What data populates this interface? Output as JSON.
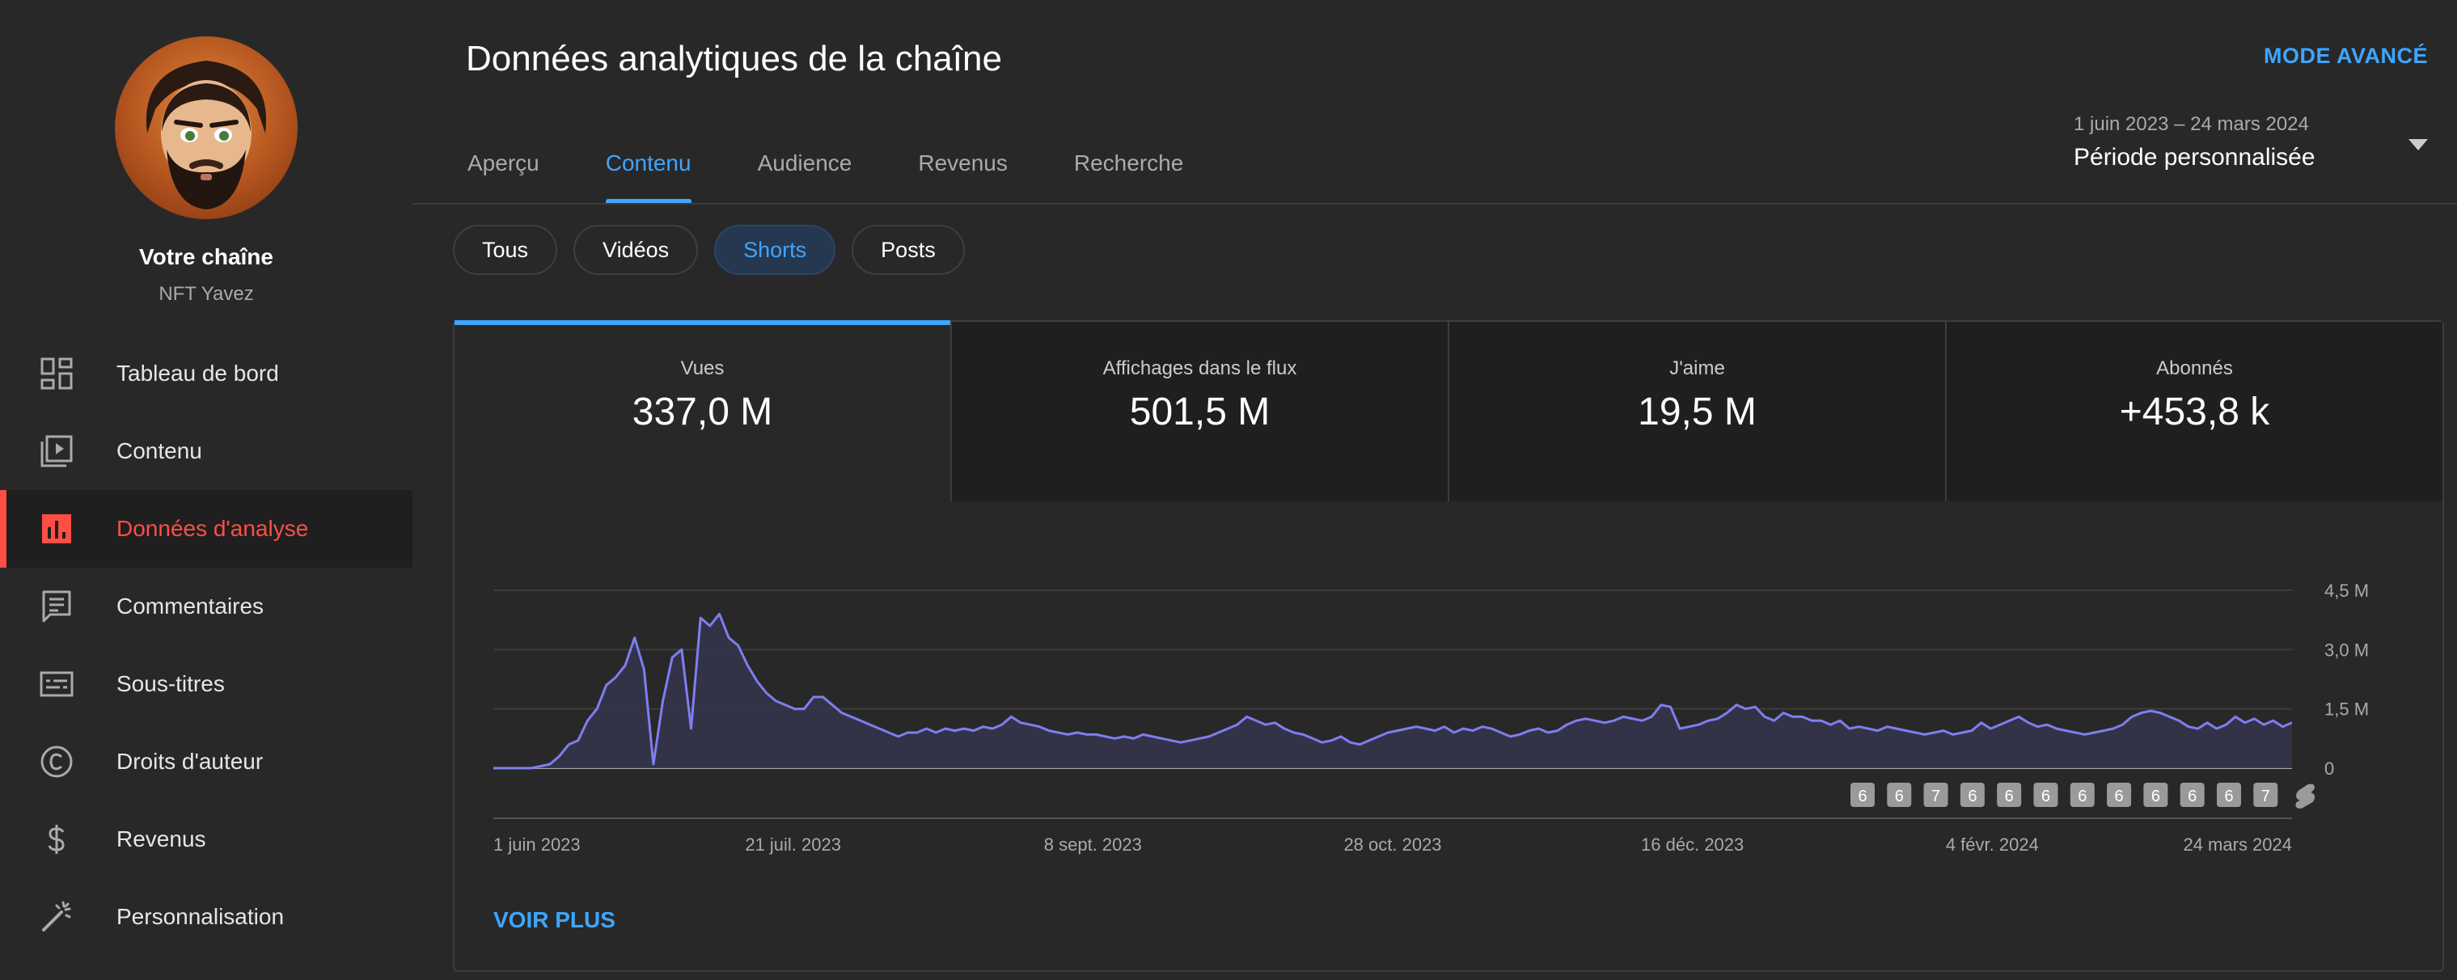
{
  "sidebar": {
    "channel_title": "Votre chaîne",
    "channel_name": "NFT Yavez",
    "items": [
      {
        "label": "Tableau de bord",
        "icon": "dashboard-icon"
      },
      {
        "label": "Contenu",
        "icon": "content-icon"
      },
      {
        "label": "Données d'analyse",
        "icon": "analytics-icon",
        "active": true
      },
      {
        "label": "Commentaires",
        "icon": "comments-icon"
      },
      {
        "label": "Sous-titres",
        "icon": "subtitles-icon"
      },
      {
        "label": "Droits d'auteur",
        "icon": "copyright-icon"
      },
      {
        "label": "Revenus",
        "icon": "dollar-icon"
      },
      {
        "label": "Personnalisation",
        "icon": "magic-wand-icon"
      }
    ]
  },
  "header": {
    "title": "Données analytiques de la chaîne",
    "advanced_mode": "MODE AVANCÉ",
    "date_range": "1 juin 2023 – 24 mars 2024",
    "period": "Période personnalisée"
  },
  "tabs": [
    {
      "label": "Aperçu"
    },
    {
      "label": "Contenu",
      "active": true
    },
    {
      "label": "Audience"
    },
    {
      "label": "Revenus"
    },
    {
      "label": "Recherche"
    }
  ],
  "chips": [
    {
      "label": "Tous"
    },
    {
      "label": "Vidéos"
    },
    {
      "label": "Shorts",
      "active": true
    },
    {
      "label": "Posts"
    }
  ],
  "metrics": [
    {
      "label": "Vues",
      "value": "337,0 M",
      "active": true
    },
    {
      "label": "Affichages dans le flux",
      "value": "501,5 M"
    },
    {
      "label": "J'aime",
      "value": "19,5 M"
    },
    {
      "label": "Abonnés",
      "value": "+453,8 k"
    }
  ],
  "chart_data": {
    "type": "area",
    "x_tick_labels": [
      "1 juin 2023",
      "21 juil. 2023",
      "8 sept. 2023",
      "28 oct. 2023",
      "16 déc. 2023",
      "4 févr. 2024",
      "24 mars 2024"
    ],
    "y_tick_labels": [
      "0",
      "1,5 M",
      "3,0 M",
      "4,5 M"
    ],
    "y_ticks": [
      0,
      1.5,
      3.0,
      4.5
    ],
    "ylim": [
      0,
      4.5
    ],
    "y_unit": "M",
    "x_start": "1 juin 2023",
    "x_end": "24 mars 2024",
    "grid": true,
    "color": "#7e7ef0",
    "fill_color": "#34344a",
    "values": [
      0,
      0,
      0,
      0,
      0,
      0.05,
      0.1,
      0.3,
      0.6,
      0.7,
      1.2,
      1.5,
      2.1,
      2.3,
      2.6,
      3.3,
      2.5,
      0.1,
      1.7,
      2.8,
      3.0,
      1.0,
      3.8,
      3.6,
      3.9,
      3.3,
      3.1,
      2.6,
      2.2,
      1.9,
      1.7,
      1.6,
      1.5,
      1.5,
      1.8,
      1.8,
      1.6,
      1.4,
      1.3,
      1.2,
      1.1,
      1.0,
      0.9,
      0.8,
      0.9,
      0.9,
      1.0,
      0.9,
      1.0,
      0.95,
      1.0,
      0.95,
      1.05,
      1.0,
      1.1,
      1.3,
      1.15,
      1.1,
      1.05,
      0.95,
      0.9,
      0.85,
      0.9,
      0.85,
      0.85,
      0.8,
      0.75,
      0.8,
      0.75,
      0.85,
      0.8,
      0.75,
      0.7,
      0.65,
      0.7,
      0.75,
      0.8,
      0.9,
      1.0,
      1.1,
      1.3,
      1.2,
      1.1,
      1.15,
      1.0,
      0.9,
      0.85,
      0.75,
      0.65,
      0.7,
      0.8,
      0.65,
      0.6,
      0.7,
      0.8,
      0.9,
      0.95,
      1.0,
      1.05,
      1.0,
      0.95,
      1.05,
      0.9,
      1.0,
      0.95,
      1.05,
      1.0,
      0.9,
      0.8,
      0.85,
      0.95,
      1.0,
      0.9,
      0.95,
      1.1,
      1.2,
      1.25,
      1.2,
      1.15,
      1.2,
      1.3,
      1.25,
      1.2,
      1.3,
      1.6,
      1.55,
      1.0,
      1.05,
      1.1,
      1.2,
      1.25,
      1.4,
      1.6,
      1.5,
      1.55,
      1.3,
      1.2,
      1.4,
      1.3,
      1.3,
      1.2,
      1.2,
      1.1,
      1.2,
      1.0,
      1.05,
      1.0,
      0.95,
      1.05,
      1.0,
      0.95,
      0.9,
      0.85,
      0.9,
      0.95,
      0.85,
      0.9,
      0.95,
      1.15,
      1.0,
      1.1,
      1.2,
      1.3,
      1.15,
      1.05,
      1.1,
      1.0,
      0.95,
      0.9,
      0.85,
      0.9,
      0.95,
      1.0,
      1.1,
      1.3,
      1.4,
      1.45,
      1.4,
      1.3,
      1.2,
      1.05,
      1.0,
      1.15,
      1.0,
      1.1,
      1.3,
      1.15,
      1.25,
      1.1,
      1.2,
      1.05,
      1.15
    ]
  },
  "markers": [
    "6",
    "6",
    "7",
    "6",
    "6",
    "6",
    "6",
    "6",
    "6",
    "6",
    "6",
    "7"
  ],
  "see_more": "VOIR PLUS"
}
